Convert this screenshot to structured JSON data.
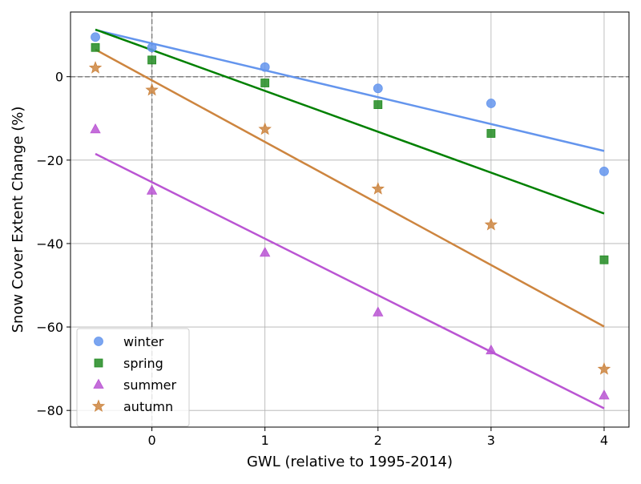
{
  "chart_data": {
    "type": "scatter",
    "title": "",
    "xlabel": "GWL (relative to 1995-2014)",
    "ylabel": "Snow Cover Extent Change (%)",
    "xlim": [
      -0.72,
      4.22
    ],
    "ylim": [
      -84,
      15.5
    ],
    "x_ticks": [
      0,
      1,
      2,
      3,
      4
    ],
    "y_ticks": [
      -80,
      -60,
      -40,
      -20,
      0
    ],
    "x_tick_labels": [
      "0",
      "1",
      "2",
      "3",
      "4"
    ],
    "y_tick_labels": [
      "−80",
      "−60",
      "−40",
      "−20",
      "0"
    ],
    "grid": true,
    "reference_lines": {
      "x": 0,
      "y": 0,
      "style": "dashed"
    },
    "legend_position": "lower-left",
    "series": [
      {
        "name": "winter",
        "marker": "circle",
        "color": "#6495ED",
        "x": [
          -0.5,
          0,
          1,
          2,
          3,
          4
        ],
        "y": [
          9.5,
          7,
          2.3,
          -2.8,
          -6.4,
          -22.7
        ],
        "fit": {
          "x": [
            -0.5,
            4
          ],
          "y": [
            11.2,
            -17.8
          ]
        }
      },
      {
        "name": "spring",
        "marker": "square",
        "color": "#228B22",
        "line_color": "#008000",
        "x": [
          -0.5,
          0,
          1,
          2,
          3,
          4
        ],
        "y": [
          7,
          4,
          -1.5,
          -6.7,
          -13.6,
          -43.9
        ],
        "fit": {
          "x": [
            -0.5,
            4
          ],
          "y": [
            11.3,
            -32.8
          ]
        }
      },
      {
        "name": "summer",
        "marker": "triangle",
        "color": "#BA55D3",
        "x": [
          -0.5,
          0,
          1,
          2,
          3,
          4
        ],
        "y": [
          -12.6,
          -27.3,
          -42.2,
          -56.5,
          -65.6,
          -76.4
        ],
        "fit": {
          "x": [
            -0.5,
            4
          ],
          "y": [
            -18.5,
            -79.5
          ]
        }
      },
      {
        "name": "autumn",
        "marker": "star",
        "color": "#CD853F",
        "x": [
          -0.5,
          0,
          1,
          2,
          3,
          4
        ],
        "y": [
          2.1,
          -3.2,
          -12.6,
          -26.9,
          -35.5,
          -70.1
        ],
        "fit": {
          "x": [
            -0.5,
            4
          ],
          "y": [
            6.5,
            -59.9
          ]
        }
      }
    ]
  }
}
